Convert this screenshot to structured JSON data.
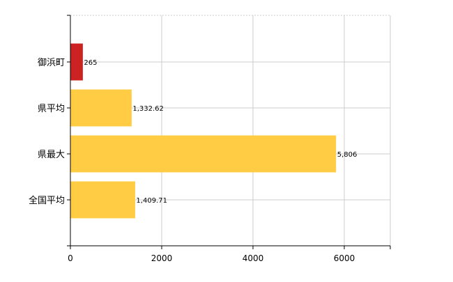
{
  "chart_data": {
    "type": "bar",
    "orientation": "horizontal",
    "categories": [
      "御浜町",
      "県平均",
      "県最大",
      "全国平均"
    ],
    "values": [
      265,
      1332.62,
      5806,
      1409.71
    ],
    "data_labels": [
      "265",
      "1,332.62",
      "5,806",
      "1,409.71"
    ],
    "bar_colors": [
      "#cc2222",
      "#ffcc44",
      "#ffcc44",
      "#ffcc44"
    ],
    "xlim": [
      0,
      7000
    ],
    "xticks": [
      0,
      2000,
      4000,
      6000
    ],
    "xtick_labels": [
      "0",
      "2000",
      "4000",
      "6000"
    ],
    "grid": true,
    "title": "",
    "xlabel": "",
    "ylabel": ""
  }
}
